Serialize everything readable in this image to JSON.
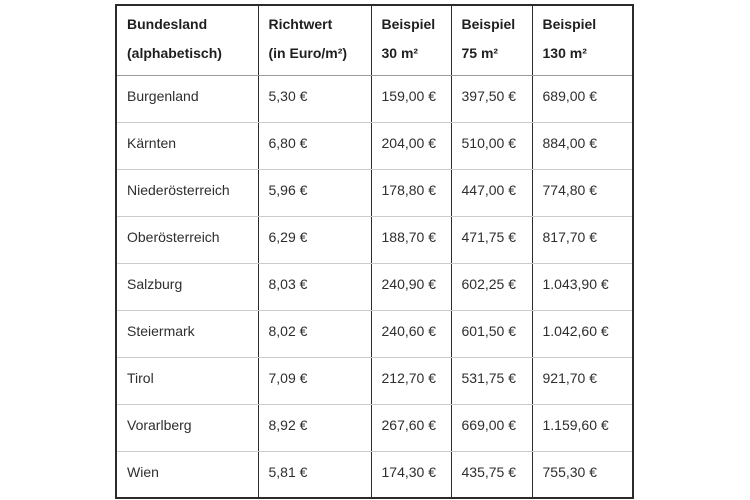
{
  "colors": {
    "background": "#ffffff",
    "outer_border": "#2b2b2b",
    "column_divider": "#2b2b2b",
    "header_bottom_border": "#9c9c9c",
    "row_divider": "#cbcbcb",
    "header_text": "#1f1f1f",
    "body_text": "#2e2e2e"
  },
  "table": {
    "columns": [
      {
        "line1": "Bundesland",
        "line2": "(alphabetisch)"
      },
      {
        "line1": "Richtwert",
        "line2": "(in Euro/m²)"
      },
      {
        "line1": "Beispiel",
        "line2": "30 m²"
      },
      {
        "line1": "Beispiel",
        "line2": "75 m²"
      },
      {
        "line1": "Beispiel",
        "line2": "130 m²"
      }
    ],
    "rows": [
      [
        "Burgenland",
        "5,30 €",
        "159,00 €",
        "397,50 €",
        "689,00 €"
      ],
      [
        "Kärnten",
        "6,80 €",
        "204,00 €",
        "510,00 €",
        "884,00 €"
      ],
      [
        "Niederösterreich",
        "5,96 €",
        "178,80 €",
        "447,00 €",
        "774,80 €"
      ],
      [
        "Oberösterreich",
        "6,29 €",
        "188,70 €",
        "471,75 €",
        "817,70 €"
      ],
      [
        "Salzburg",
        "8,03 €",
        "240,90 €",
        "602,25 €",
        "1.043,90 €"
      ],
      [
        "Steiermark",
        "8,02 €",
        "240,60 €",
        "601,50 €",
        "1.042,60 €"
      ],
      [
        "Tirol",
        "7,09 €",
        "212,70 €",
        "531,75 €",
        "921,70 €"
      ],
      [
        "Vorarlberg",
        "8,92 €",
        "267,60 €",
        "669,00 €",
        "1.159,60 €"
      ],
      [
        "Wien",
        "5,81 €",
        "174,30 €",
        "435,75 €",
        "755,30 €"
      ]
    ]
  },
  "chart_data": {
    "type": "table",
    "title": "",
    "columns": [
      "Bundesland (alphabetisch)",
      "Richtwert (in Euro/m²)",
      "Beispiel 30 m²",
      "Beispiel 75 m²",
      "Beispiel 130 m²"
    ],
    "rows": [
      [
        "Burgenland",
        "5,30 €",
        "159,00 €",
        "397,50 €",
        "689,00 €"
      ],
      [
        "Kärnten",
        "6,80 €",
        "204,00 €",
        "510,00 €",
        "884,00 €"
      ],
      [
        "Niederösterreich",
        "5,96 €",
        "178,80 €",
        "447,00 €",
        "774,80 €"
      ],
      [
        "Oberösterreich",
        "6,29 €",
        "188,70 €",
        "471,75 €",
        "817,70 €"
      ],
      [
        "Salzburg",
        "8,03 €",
        "240,90 €",
        "602,25 €",
        "1.043,90 €"
      ],
      [
        "Steiermark",
        "8,02 €",
        "240,60 €",
        "601,50 €",
        "1.042,60 €"
      ],
      [
        "Tirol",
        "7,09 €",
        "212,70 €",
        "531,75 €",
        "921,70 €"
      ],
      [
        "Vorarlberg",
        "8,92 €",
        "267,60 €",
        "669,00 €",
        "1.159,60 €"
      ],
      [
        "Wien",
        "5,81 €",
        "174,30 €",
        "435,75 €",
        "755,30 €"
      ]
    ],
    "numeric": {
      "bundesland": [
        "Burgenland",
        "Kärnten",
        "Niederösterreich",
        "Oberösterreich",
        "Salzburg",
        "Steiermark",
        "Tirol",
        "Vorarlberg",
        "Wien"
      ],
      "richtwert_eur_per_m2": [
        5.3,
        6.8,
        5.96,
        6.29,
        8.03,
        8.02,
        7.09,
        8.92,
        5.81
      ],
      "beispiel_30_m2_eur": [
        159.0,
        204.0,
        178.8,
        188.7,
        240.9,
        240.6,
        212.7,
        267.6,
        174.3
      ],
      "beispiel_75_m2_eur": [
        397.5,
        510.0,
        447.0,
        471.75,
        602.25,
        601.5,
        531.75,
        669.0,
        435.75
      ],
      "beispiel_130_m2_eur": [
        689.0,
        884.0,
        774.8,
        817.7,
        1043.9,
        1042.6,
        921.7,
        1159.6,
        755.3
      ]
    }
  }
}
